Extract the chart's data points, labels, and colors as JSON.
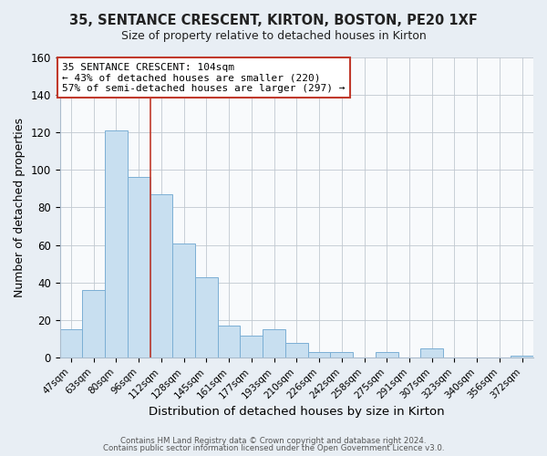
{
  "title": "35, SENTANCE CRESCENT, KIRTON, BOSTON, PE20 1XF",
  "subtitle": "Size of property relative to detached houses in Kirton",
  "xlabel": "Distribution of detached houses by size in Kirton",
  "ylabel": "Number of detached properties",
  "bar_labels": [
    "47sqm",
    "63sqm",
    "80sqm",
    "96sqm",
    "112sqm",
    "128sqm",
    "145sqm",
    "161sqm",
    "177sqm",
    "193sqm",
    "210sqm",
    "226sqm",
    "242sqm",
    "258sqm",
    "275sqm",
    "291sqm",
    "307sqm",
    "323sqm",
    "340sqm",
    "356sqm",
    "372sqm"
  ],
  "bar_values": [
    15,
    36,
    121,
    96,
    87,
    61,
    43,
    17,
    12,
    15,
    8,
    3,
    3,
    0,
    3,
    0,
    5,
    0,
    0,
    0,
    1
  ],
  "bar_color": "#c8dff0",
  "bar_edge_color": "#7bafd4",
  "ylim": [
    0,
    160
  ],
  "yticks": [
    0,
    20,
    40,
    60,
    80,
    100,
    120,
    140,
    160
  ],
  "subject_line_color": "#c0392b",
  "annotation_title": "35 SENTANCE CRESCENT: 104sqm",
  "annotation_line1": "← 43% of detached houses are smaller (220)",
  "annotation_line2": "57% of semi-detached houses are larger (297) →",
  "footer_line1": "Contains HM Land Registry data © Crown copyright and database right 2024.",
  "footer_line2": "Contains public sector information licensed under the Open Government Licence v3.0.",
  "background_color": "#e8eef4",
  "plot_background_color": "#f8fafc"
}
